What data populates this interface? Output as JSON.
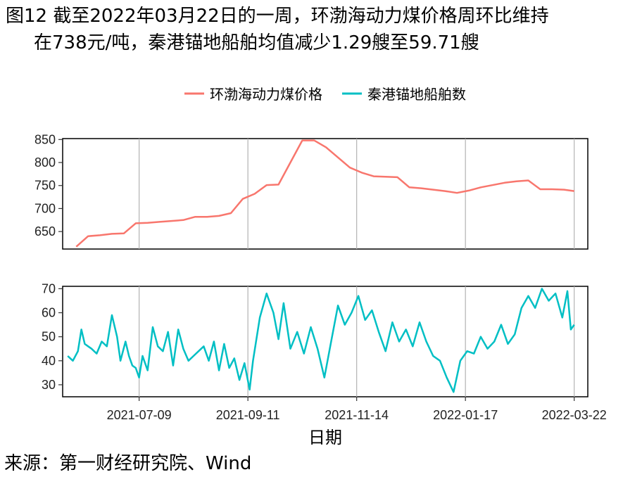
{
  "title": {
    "line1": "图12 截至2022年03月22日的一周，环渤海动力煤价格周环比维持",
    "line2": "在738元/吨，秦港锚地船舶均值减少1.29艘至59.71艘"
  },
  "source": "来源：第一财经研究院、Wind",
  "colors": {
    "price": "#F8766D",
    "ships": "#00BFC4"
  },
  "chart_data": {
    "type": "line",
    "xlabel": "日期",
    "legend_position": "top",
    "x_ticks": [
      "2021-07-09",
      "2021-09-11",
      "2021-11-14",
      "2022-01-17",
      "2022-03-22"
    ],
    "x_range": [
      "2021-05-25",
      "2022-03-30"
    ],
    "grid": "vertical",
    "series": [
      {
        "name": "环渤海动力煤价格",
        "panel": "top",
        "ylim": [
          612,
          852
        ],
        "yticks": [
          650,
          700,
          750,
          800,
          850
        ],
        "x": [
          "2021-06-02",
          "2021-06-09",
          "2021-06-16",
          "2021-06-23",
          "2021-06-30",
          "2021-07-07",
          "2021-07-14",
          "2021-07-21",
          "2021-07-28",
          "2021-08-04",
          "2021-08-11",
          "2021-08-18",
          "2021-08-25",
          "2021-09-01",
          "2021-09-08",
          "2021-09-15",
          "2021-09-22",
          "2021-09-29",
          "2021-10-13",
          "2021-10-20",
          "2021-10-27",
          "2021-11-03",
          "2021-11-10",
          "2021-11-17",
          "2021-11-24",
          "2021-12-01",
          "2021-12-08",
          "2021-12-15",
          "2021-12-22",
          "2021-12-29",
          "2022-01-05",
          "2022-01-12",
          "2022-01-19",
          "2022-01-26",
          "2022-02-09",
          "2022-02-16",
          "2022-02-23",
          "2022-03-02",
          "2022-03-09",
          "2022-03-16",
          "2022-03-22"
        ],
        "values": [
          617,
          640,
          642,
          645,
          646,
          668,
          669,
          671,
          673,
          675,
          682,
          682,
          684,
          690,
          721,
          732,
          751,
          752,
          848,
          848,
          833,
          811,
          789,
          778,
          770,
          769,
          768,
          746,
          744,
          741,
          738,
          734,
          739,
          746,
          756,
          759,
          761,
          742,
          742,
          741,
          738
        ]
      },
      {
        "name": "秦港锚地船舶数",
        "panel": "bottom",
        "ylim": [
          25,
          71
        ],
        "yticks": [
          30,
          40,
          50,
          60,
          70
        ],
        "x": [
          "2021-05-28",
          "2021-05-31",
          "2021-06-03",
          "2021-06-05",
          "2021-06-07",
          "2021-06-09",
          "2021-06-11",
          "2021-06-14",
          "2021-06-17",
          "2021-06-20",
          "2021-06-23",
          "2021-06-26",
          "2021-06-28",
          "2021-07-01",
          "2021-07-03",
          "2021-07-05",
          "2021-07-07",
          "2021-07-09",
          "2021-07-11",
          "2021-07-14",
          "2021-07-17",
          "2021-07-20",
          "2021-07-23",
          "2021-07-26",
          "2021-07-29",
          "2021-08-01",
          "2021-08-04",
          "2021-08-07",
          "2021-08-10",
          "2021-08-13",
          "2021-08-16",
          "2021-08-19",
          "2021-08-22",
          "2021-08-25",
          "2021-08-28",
          "2021-08-31",
          "2021-09-03",
          "2021-09-06",
          "2021-09-09",
          "2021-09-12",
          "2021-09-14",
          "2021-09-18",
          "2021-09-22",
          "2021-09-26",
          "2021-09-29",
          "2021-10-02",
          "2021-10-06",
          "2021-10-10",
          "2021-10-14",
          "2021-10-18",
          "2021-10-22",
          "2021-10-26",
          "2021-10-30",
          "2021-11-03",
          "2021-11-07",
          "2021-11-11",
          "2021-11-15",
          "2021-11-19",
          "2021-11-23",
          "2021-11-27",
          "2021-12-01",
          "2021-12-05",
          "2021-12-09",
          "2021-12-13",
          "2021-12-17",
          "2021-12-21",
          "2021-12-25",
          "2021-12-29",
          "2022-01-02",
          "2022-01-06",
          "2022-01-10",
          "2022-01-14",
          "2022-01-18",
          "2022-01-22",
          "2022-01-26",
          "2022-01-30",
          "2022-02-03",
          "2022-02-07",
          "2022-02-11",
          "2022-02-15",
          "2022-02-19",
          "2022-02-23",
          "2022-02-27",
          "2022-03-03",
          "2022-03-07",
          "2022-03-11",
          "2022-03-15",
          "2022-03-18",
          "2022-03-20",
          "2022-03-22"
        ],
        "values": [
          42,
          40,
          44,
          53,
          47,
          46,
          45,
          43,
          48,
          46,
          59,
          50,
          40,
          48,
          42,
          38,
          37,
          33,
          42,
          36,
          54,
          46,
          44,
          52,
          38,
          53,
          45,
          40,
          42,
          44,
          46,
          40,
          48,
          36,
          47,
          37,
          41,
          32,
          39,
          28,
          40,
          58,
          68,
          60,
          49,
          64,
          45,
          52,
          43,
          54,
          45,
          33,
          48,
          63,
          55,
          60,
          67,
          57,
          61,
          52,
          44,
          56,
          48,
          53,
          46,
          56,
          48,
          42,
          40,
          33,
          27,
          40,
          44,
          43,
          50,
          45,
          48,
          55,
          47,
          51,
          62,
          67,
          62,
          70,
          65,
          68,
          58,
          69,
          53,
          55
        ]
      }
    ]
  }
}
